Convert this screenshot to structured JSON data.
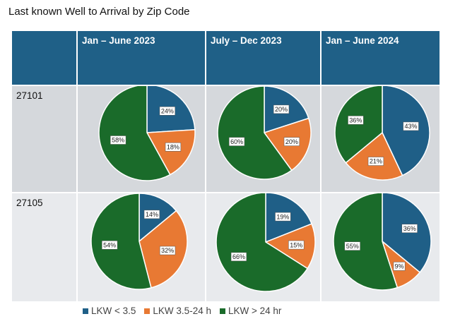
{
  "chart_data": {
    "type": "pie",
    "title": "Last known Well to Arrival by Zip Code",
    "column_headers": [
      "Jan – June 2023",
      "July – Dec 2023",
      "Jan – June 2024"
    ],
    "row_headers": [
      "27101",
      "27105"
    ],
    "legend": [
      {
        "name": "LKW < 3.5",
        "color": "#1f5f87"
      },
      {
        "name": "LKW 3.5-24 h",
        "color": "#e87933"
      },
      {
        "name": "LKW > 24 hr",
        "color": "#1a6b2a"
      }
    ],
    "pies": [
      [
        {
          "values": [
            24,
            18,
            58
          ],
          "labels": [
            "24%",
            "18%",
            "58%"
          ]
        },
        {
          "values": [
            20,
            20,
            60
          ],
          "labels": [
            "20%",
            "20%",
            "60%"
          ]
        },
        {
          "values": [
            43,
            21,
            36
          ],
          "labels": [
            "43%",
            "21%",
            "36%"
          ]
        }
      ],
      [
        {
          "values": [
            14,
            32,
            54
          ],
          "labels": [
            "14%",
            "32%",
            "54%"
          ]
        },
        {
          "values": [
            19,
            15,
            66
          ],
          "labels": [
            "19%",
            "15%",
            "66%"
          ]
        },
        {
          "values": [
            36,
            9,
            55
          ],
          "labels": [
            "36%",
            "9%",
            "55%"
          ]
        }
      ]
    ]
  }
}
